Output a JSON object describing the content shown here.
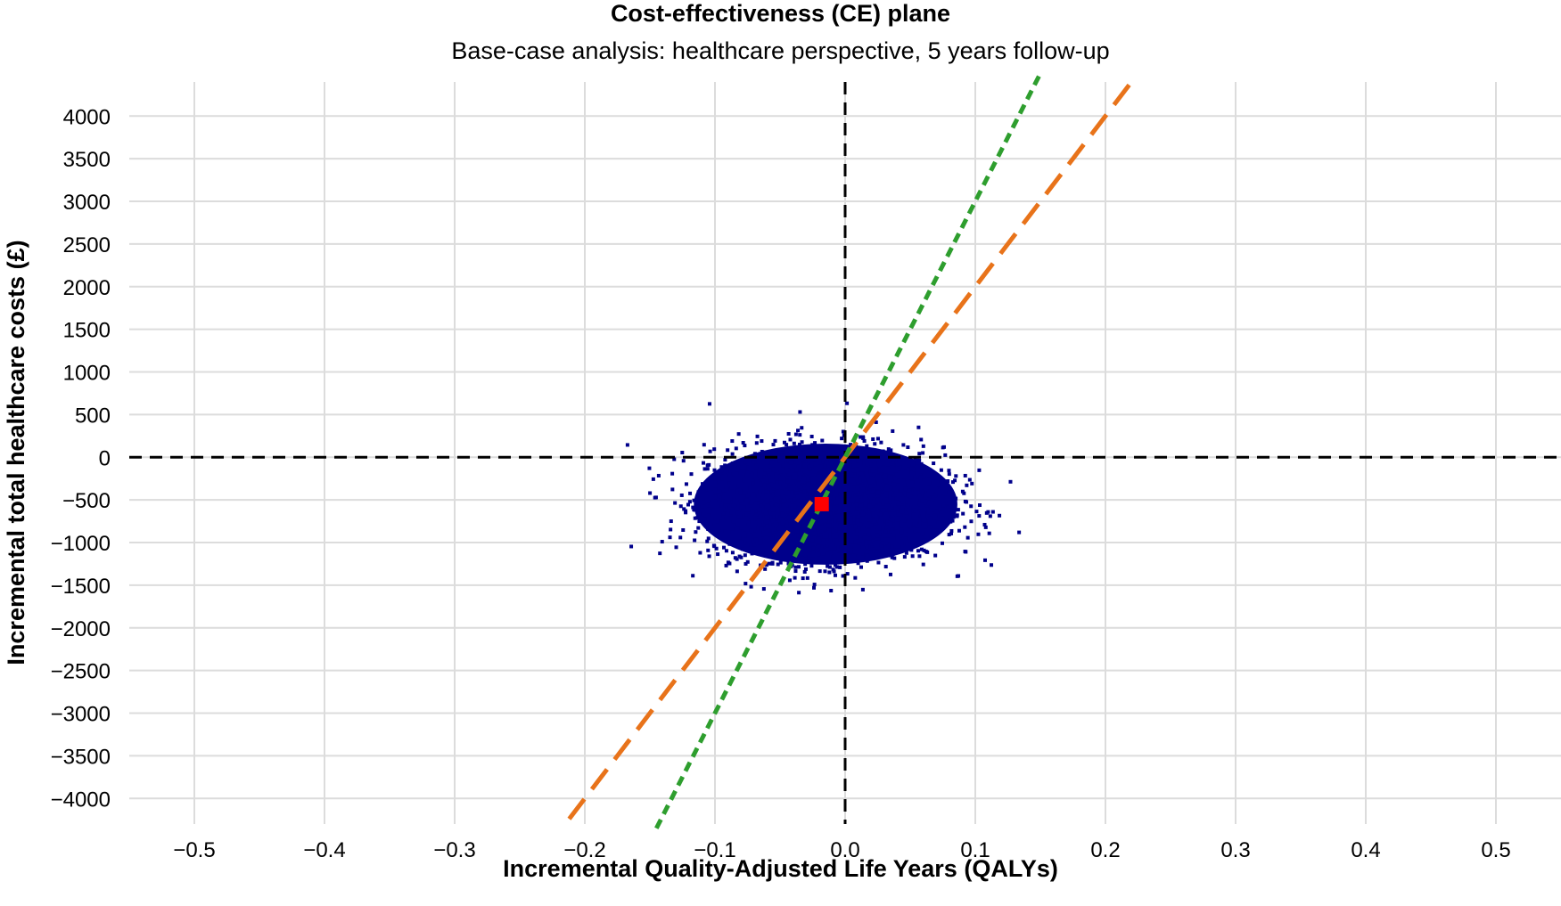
{
  "chart_data": {
    "type": "scatter",
    "title": "Cost-effectiveness (CE) plane",
    "subtitle": "Base-case analysis: healthcare perspective, 5 years follow-up",
    "xlabel": "Incremental Quality-Adjusted Life Years (QALYs)",
    "ylabel": "Incremental total healthcare costs (£)",
    "xlim": [
      -0.55,
      0.55
    ],
    "ylim": [
      -4300,
      4400
    ],
    "x_ticks": [
      -0.5,
      -0.4,
      -0.3,
      -0.2,
      -0.1,
      0.0,
      0.1,
      0.2,
      0.3,
      0.4,
      0.5
    ],
    "x_tick_labels": [
      "−0.5",
      "−0.4",
      "−0.3",
      "−0.2",
      "−0.1",
      "0.0",
      "0.1",
      "0.2",
      "0.3",
      "0.4",
      "0.5"
    ],
    "y_ticks": [
      4000,
      3500,
      3000,
      2500,
      2000,
      1500,
      1000,
      500,
      0,
      -500,
      -1000,
      -1500,
      -2000,
      -2500,
      -3000,
      -3500,
      -4000
    ],
    "y_tick_labels": [
      "4000",
      "3500",
      "3000",
      "2500",
      "2000",
      "1500",
      "1000",
      "500",
      "0",
      "−500",
      "−1000",
      "−1500",
      "−2000",
      "−2500",
      "−3000",
      "−3500",
      "−4000"
    ],
    "grid": true,
    "scatter_cloud": {
      "color": "#00008b",
      "center": [
        -0.015,
        -550
      ],
      "spread": [
        0.045,
        330
      ],
      "x_range": [
        -0.17,
        0.14
      ],
      "y_range": [
        -1650,
        760
      ]
    },
    "point_estimate": {
      "x": -0.018,
      "y": -550,
      "color": "#ff0000"
    },
    "threshold_lines": [
      {
        "slope": 20000,
        "color": "#e8731a",
        "style": "long-dash",
        "x_range": [
          -0.212,
          0.222
        ]
      },
      {
        "slope": 30000,
        "color": "#2e9e2e",
        "style": "short-dash",
        "x_range": [
          -0.145,
          0.15
        ]
      }
    ],
    "reference_lines": {
      "x": 0,
      "y": 0,
      "color": "#000000",
      "style": "dashed"
    }
  }
}
